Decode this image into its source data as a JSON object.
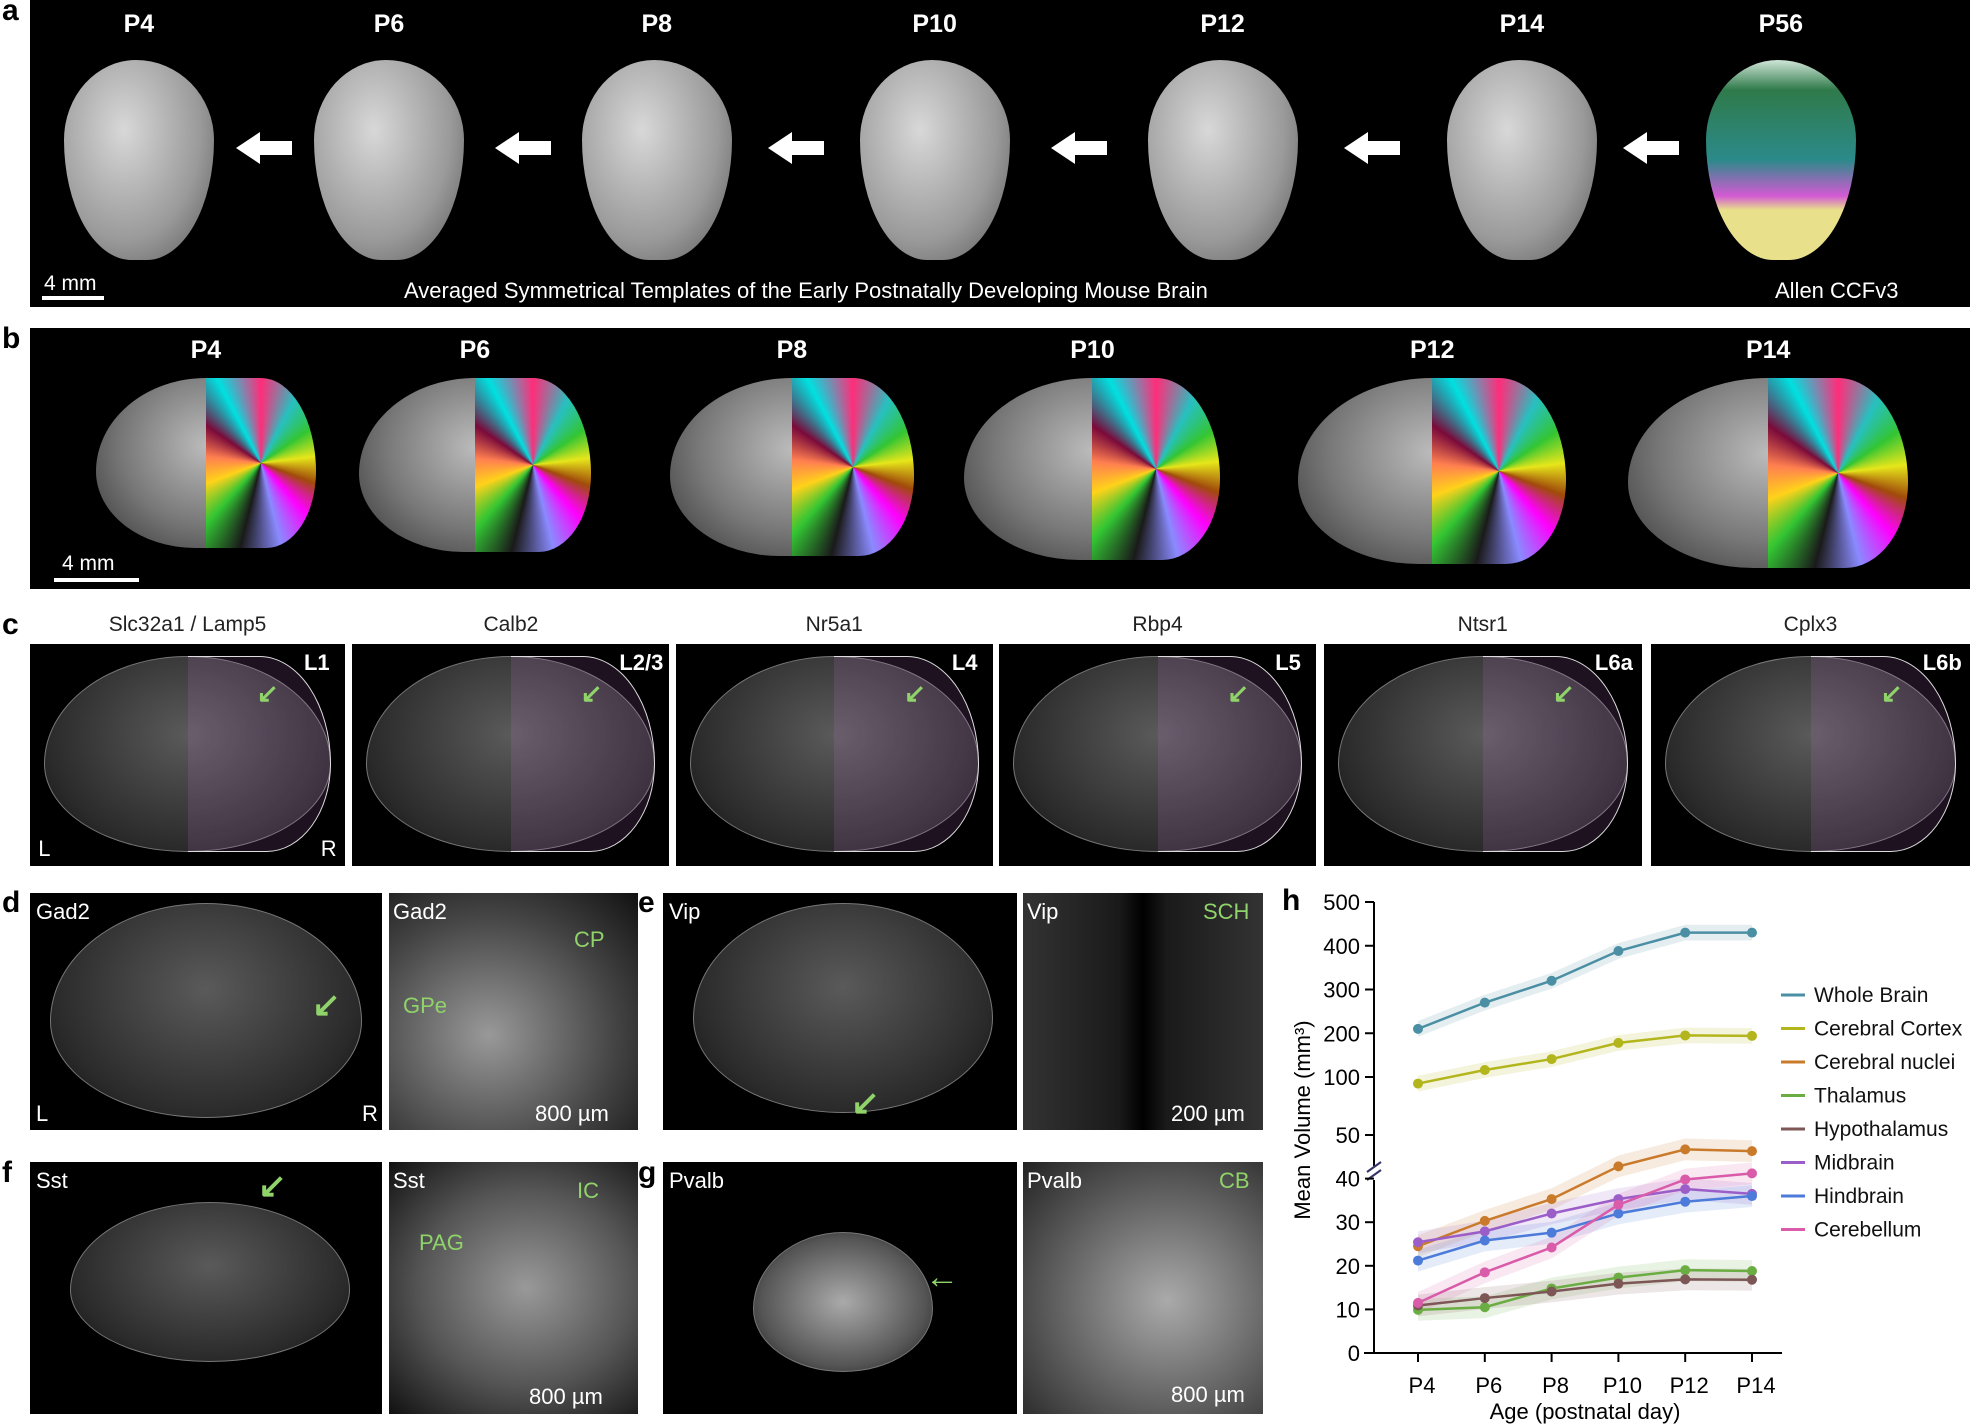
{
  "panel_a": {
    "letter": "a",
    "ages": [
      "P4",
      "P6",
      "P8",
      "P10",
      "P12",
      "P14",
      "P56"
    ],
    "scale_bar": "4 mm",
    "caption": "Averaged Symmetrical Templates of the Early Postnatally Developing Mouse Brain",
    "reference_label": "Allen CCFv3"
  },
  "panel_b": {
    "letter": "b",
    "ages": [
      "P4",
      "P6",
      "P8",
      "P10",
      "P12",
      "P14"
    ],
    "scale_bar": "4 mm"
  },
  "panel_c": {
    "letter": "c",
    "genes": [
      "Slc32a1 / Lamp5",
      "Calb2",
      "Nr5a1",
      "Rbp4",
      "Ntsr1",
      "Cplx3"
    ],
    "layers": [
      "L1",
      "L2/3",
      "L4",
      "L5",
      "L6a",
      "L6b"
    ],
    "left_label": "L",
    "right_label": "R"
  },
  "panel_d": {
    "letter": "d",
    "gene_left": "Gad2",
    "gene_right": "Gad2",
    "left_label": "L",
    "right_label": "R",
    "regions": [
      "CP",
      "GPe"
    ],
    "scale_bar": "800 µm"
  },
  "panel_e": {
    "letter": "e",
    "gene_left": "Vip",
    "gene_right": "Vip",
    "region": "SCH",
    "scale_bar": "200 µm"
  },
  "panel_f": {
    "letter": "f",
    "gene_left": "Sst",
    "gene_right": "Sst",
    "regions": [
      "IC",
      "PAG"
    ],
    "scale_bar": "800 µm"
  },
  "panel_g": {
    "letter": "g",
    "gene_left": "Pvalb",
    "gene_right": "Pvalb",
    "region": "CB",
    "scale_bar": "800 µm"
  },
  "chart_data": {
    "letter": "h",
    "type": "line",
    "xlabel": "Age (postnatal day)",
    "ylabel": "Mean Volume (mm³)",
    "categories": [
      "P4",
      "P6",
      "P8",
      "P10",
      "P12",
      "P14"
    ],
    "y_axis_broken": true,
    "upper_ylim": [
      50,
      500
    ],
    "upper_ticks": [
      100,
      200,
      300,
      400,
      500
    ],
    "lower_ylim": [
      0,
      55
    ],
    "lower_ticks": [
      0,
      10,
      20,
      30,
      40,
      50
    ],
    "legend_position": "right",
    "shaded_error_bands": true,
    "series": [
      {
        "name": "Whole Brain",
        "color": "#4a8fa3",
        "axis": "upper",
        "values": [
          210,
          270,
          320,
          388,
          430,
          430
        ]
      },
      {
        "name": "Cerebral Cortex",
        "color": "#b3b51c",
        "axis": "upper",
        "values": [
          85,
          116,
          141,
          178,
          195,
          194
        ]
      },
      {
        "name": "Cerebral nuclei",
        "color": "#c97b2b",
        "axis": "lower",
        "values": [
          24.5,
          30.3,
          35.3,
          42.8,
          46.7,
          46.3
        ]
      },
      {
        "name": "Thalamus",
        "color": "#6aad43",
        "axis": "lower",
        "values": [
          9.9,
          10.5,
          14.8,
          17.3,
          19.0,
          18.8
        ]
      },
      {
        "name": "Hypothalamus",
        "color": "#7d5656",
        "axis": "lower",
        "values": [
          10.9,
          12.6,
          14.1,
          15.9,
          16.9,
          16.8
        ]
      },
      {
        "name": "Midbrain",
        "color": "#9b5ec9",
        "axis": "lower",
        "values": [
          25.4,
          27.9,
          32.0,
          35.3,
          37.6,
          36.5
        ]
      },
      {
        "name": "Hindbrain",
        "color": "#4c7bd9",
        "axis": "lower",
        "values": [
          21.2,
          25.8,
          27.6,
          32.0,
          34.7,
          36.0
        ]
      },
      {
        "name": "Cerebellum",
        "color": "#d95ba9",
        "axis": "lower",
        "values": [
          11.5,
          18.5,
          24.2,
          34.0,
          39.8,
          41.2
        ]
      }
    ]
  }
}
